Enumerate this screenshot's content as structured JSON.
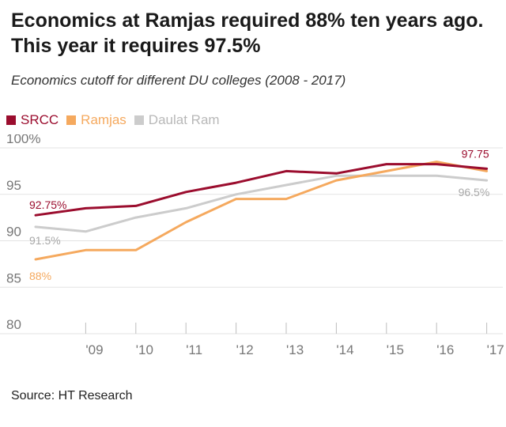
{
  "header": {
    "title_line1": "Economics at Ramjas required 88% ten years ago.",
    "title_line2": "This year it requires 97.5%",
    "subtitle": "Economics cutoff for different DU colleges (2008 - 2017)"
  },
  "source": "Source: HT Research",
  "colors": {
    "SRCC": "#9b0d2e",
    "Ramjas": "#f5a95e",
    "Daulat Ram": "#cccccc",
    "grid": "#e3e3e3",
    "axis_text": "#777777"
  },
  "chart_data": {
    "type": "line",
    "x": [
      2008,
      2009,
      2010,
      2011,
      2012,
      2013,
      2014,
      2015,
      2016,
      2017
    ],
    "x_tick_labels": [
      "'09",
      "'10",
      "'11",
      "'12",
      "'13",
      "'14",
      "'15",
      "'16",
      "'17"
    ],
    "y_tick_labels": [
      "100%",
      "95",
      "90",
      "85",
      "80"
    ],
    "y_ticks": [
      100,
      95,
      90,
      85,
      80
    ],
    "ylim": [
      80,
      100
    ],
    "grid": true,
    "legend": "top-left",
    "series": [
      {
        "name": "SRCC",
        "values": [
          92.75,
          93.5,
          93.75,
          95.25,
          96.25,
          97.5,
          97.25,
          98.25,
          98.25,
          97.75
        ],
        "start_label": "92.75%",
        "end_label": "97.75"
      },
      {
        "name": "Ramjas",
        "values": [
          88,
          89,
          89,
          92,
          94.5,
          94.5,
          96.5,
          97.5,
          98.5,
          97.5
        ],
        "start_label": "88%",
        "end_label": ""
      },
      {
        "name": "Daulat Ram",
        "values": [
          91.5,
          91,
          92.5,
          93.5,
          95,
          96,
          97,
          97,
          97,
          96.5
        ],
        "start_label": "91.5%",
        "end_label": "96.5%"
      }
    ]
  }
}
